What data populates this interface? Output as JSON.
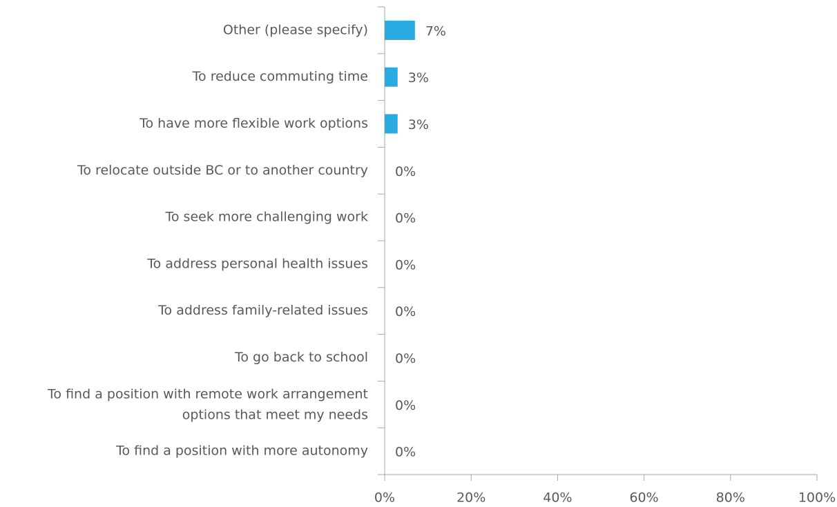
{
  "chart_data": {
    "type": "hbar",
    "categories": [
      "Other (please specify)",
      "To reduce commuting time",
      "To have more flexible work options",
      "To relocate outside BC or to another country",
      "To seek more challenging work",
      "To address personal health issues",
      "To address family-related issues",
      "To go back to school",
      "To find a position with remote work arrangement\noptions that meet my needs",
      "To find a position with more autonomy"
    ],
    "values": [
      7,
      3,
      3,
      0,
      0,
      0,
      0,
      0,
      0,
      0
    ],
    "value_labels": [
      "7%",
      "3%",
      "3%",
      "0%",
      "0%",
      "0%",
      "0%",
      "0%",
      "0%",
      "0%"
    ],
    "color": "#29abe2",
    "xlim": [
      0,
      100
    ],
    "xticks": [
      {
        "value": 0,
        "label": "0%"
      },
      {
        "value": 20,
        "label": "20%"
      },
      {
        "value": 40,
        "label": "40%"
      },
      {
        "value": 60,
        "label": "60%"
      },
      {
        "value": 80,
        "label": "80%"
      },
      {
        "value": 100,
        "label": "100%"
      }
    ]
  }
}
